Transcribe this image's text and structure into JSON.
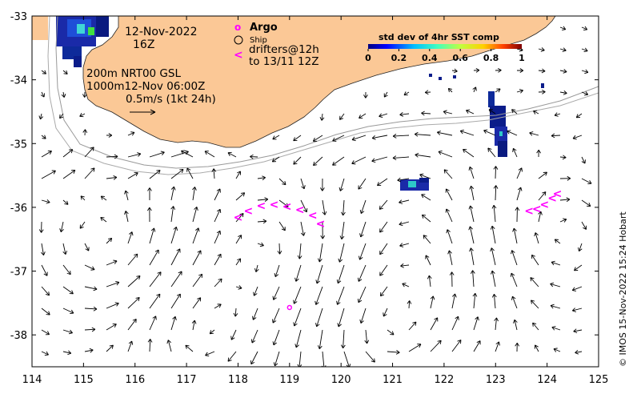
{
  "map": {
    "date": "12-Nov-2022",
    "hour": "16Z",
    "legend": {
      "argo": "Argo",
      "ship": "Ship",
      "drifters_line1": "drifters@12h",
      "drifters_line2": "to 13/11 12Z",
      "argo_symbol": "o",
      "drifter_symbol": "<"
    },
    "isobaths": {
      "line1": "200m  NRT00 GSL",
      "line2": "1000m12-Nov 06:00Z"
    },
    "scale": {
      "label": "0.5m/s (1kt 24h)"
    },
    "colorbar": {
      "title": "std dev of 4hr SST comp",
      "ticks": [
        "0",
        "0.2",
        "0.4",
        "0.6",
        "0.8",
        "1"
      ]
    },
    "credit": "© IMOS 15-Nov-2022 15:24 Hobart",
    "x_ticks": [
      "114",
      "115",
      "116",
      "117",
      "118",
      "119",
      "120",
      "121",
      "122",
      "123",
      "124",
      "125"
    ],
    "y_ticks": [
      "-33",
      "-34",
      "-35",
      "-36",
      "-37",
      "-38"
    ],
    "land_color": "#fbc896",
    "drifter_color": "#ff00ff",
    "argo_color": "#ff00ff",
    "axes": {
      "lon_range": [
        114,
        125
      ],
      "lat_range": [
        -38.5,
        -33
      ]
    },
    "argo_floats": [
      {
        "lon": 119.0,
        "lat": -37.57
      }
    ],
    "drifters": [
      {
        "lon": 118.0,
        "lat": -36.15
      },
      {
        "lon": 118.2,
        "lat": -36.05
      },
      {
        "lon": 118.45,
        "lat": -35.97
      },
      {
        "lon": 118.7,
        "lat": -35.95
      },
      {
        "lon": 118.95,
        "lat": -35.98
      },
      {
        "lon": 119.2,
        "lat": -36.03
      },
      {
        "lon": 119.45,
        "lat": -36.12
      },
      {
        "lon": 119.6,
        "lat": -36.25
      },
      {
        "lon": 123.65,
        "lat": -36.05
      },
      {
        "lon": 123.8,
        "lat": -36.02
      },
      {
        "lon": 123.95,
        "lat": -35.95
      },
      {
        "lon": 124.1,
        "lat": -35.85
      },
      {
        "lon": 124.2,
        "lat": -35.78
      }
    ]
  }
}
